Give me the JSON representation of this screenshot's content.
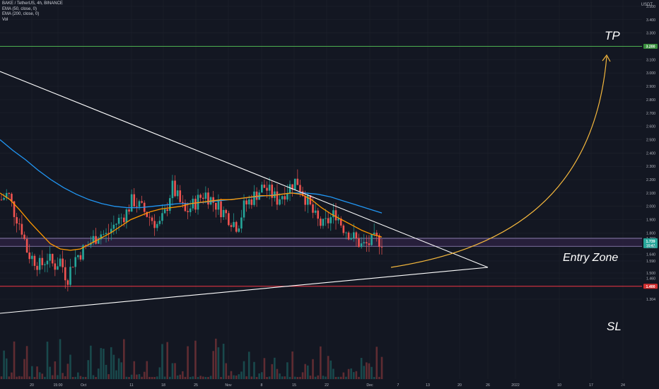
{
  "header": {
    "symbol_line": "BAKE / TetherUS, 4h, BINANCE",
    "indicators": [
      "EMA (50, close, 0)",
      "EMA (200, close, 0)",
      "Vol"
    ],
    "currency": "USDT"
  },
  "annotations": {
    "tp": "TP",
    "entry": "Entry Zone",
    "sl": "SL"
  },
  "badges": {
    "tp": "3.200",
    "price": "1.739",
    "countdown": "16:47",
    "entry_low": "1.700",
    "sl": "1.400"
  },
  "colors": {
    "background": "#131722",
    "grid": "#1e222d",
    "up": "#26a69a",
    "down": "#ef5350",
    "ema50": "#ff9800",
    "ema200": "#2196f3",
    "trendline": "#ffffff",
    "tp_line": "#4caf50",
    "sl_line": "#f23645",
    "entry_zone_fill": "#2c2140",
    "entry_zone_border": "#9c8cc4",
    "arrow": "#f5b83d"
  },
  "chart_data": {
    "type": "candlestick",
    "price_scale_ticks": [
      "3.500",
      "3.400",
      "3.300",
      "3.200",
      "3.100",
      "3.000",
      "2.900",
      "2.800",
      "2.700",
      "2.600",
      "2.500",
      "2.400",
      "2.300",
      "2.200",
      "2.100",
      "2.000",
      "1.900",
      "1.800",
      "1.760",
      "1.739",
      "1.700",
      "1.640",
      "1.590",
      "1.500",
      "1.460",
      "1.400",
      "1.304"
    ],
    "time_ticks": [
      "20",
      "15:00",
      "Oct",
      "11",
      "18",
      "25",
      "Nov",
      "8",
      "15",
      "22",
      "Dec",
      "7",
      "13",
      "20",
      "26",
      "2022",
      "10",
      "17",
      "24"
    ],
    "levels": {
      "take_profit": 3.2,
      "entry_top": 1.76,
      "entry_bottom": 1.7,
      "stop_loss": 1.4
    },
    "close_approx": [
      2.05,
      2.1,
      1.95,
      1.85,
      1.65,
      1.6,
      1.55,
      1.62,
      1.55,
      1.6,
      1.45,
      1.6,
      1.65,
      1.7,
      1.75,
      1.8,
      1.78,
      1.85,
      1.9,
      1.95,
      2.05,
      2.0,
      1.95,
      1.9,
      1.85,
      1.95,
      2.15,
      2.05,
      1.95,
      2.0,
      2.05,
      2.1,
      2.05,
      2.0,
      1.95,
      1.9,
      1.85,
      2.0,
      2.05,
      2.1,
      2.15,
      2.1,
      2.05,
      2.1,
      2.15,
      2.2,
      2.1,
      2.0,
      1.9,
      1.85,
      1.9,
      1.95,
      1.85,
      1.8,
      1.75,
      1.7,
      1.72,
      1.75,
      1.74
    ],
    "ema50_approx": [
      2.1,
      2.05,
      1.97,
      1.88,
      1.8,
      1.72,
      1.68,
      1.67,
      1.68,
      1.72,
      1.76,
      1.8,
      1.85,
      1.9,
      1.93,
      1.96,
      1.98,
      1.99,
      2.0,
      2.02,
      2.03,
      2.04,
      2.05,
      2.05,
      2.06,
      2.07,
      2.08,
      2.08,
      2.09,
      2.1,
      2.09,
      2.05,
      1.99,
      1.94,
      1.9,
      1.86,
      1.82,
      1.79,
      1.77
    ],
    "ema200_approx": [
      2.5,
      2.42,
      2.35,
      2.27,
      2.2,
      2.14,
      2.09,
      2.05,
      2.02,
      2.0,
      1.99,
      1.99,
      2.0,
      2.01,
      2.02,
      2.02,
      2.03,
      2.04,
      2.05,
      2.06,
      2.07,
      2.08,
      2.09,
      2.1,
      2.1,
      2.09,
      2.07,
      2.04,
      2.01,
      1.98,
      1.95
    ]
  }
}
